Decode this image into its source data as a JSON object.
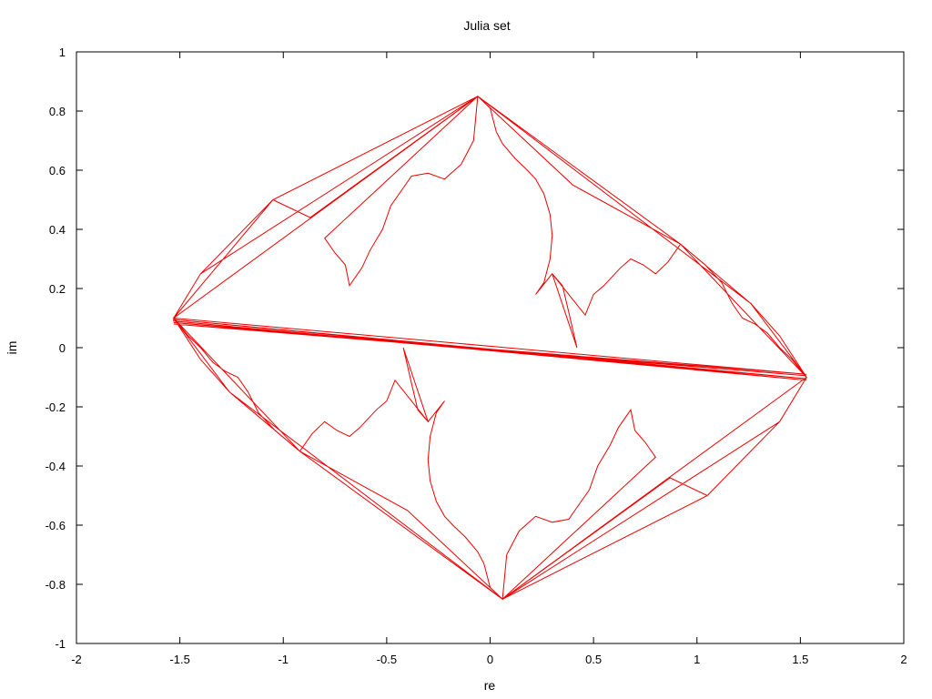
{
  "chart_data": {
    "type": "line",
    "title": "Julia set",
    "xlabel": "re",
    "ylabel": "im",
    "xlim": [
      -2,
      2
    ],
    "ylim": [
      -1,
      1
    ],
    "x_ticks": [
      -2,
      -1.5,
      -1,
      -0.5,
      0,
      0.5,
      1,
      1.5,
      2
    ],
    "x_tick_labels": [
      "-2",
      "-1.5",
      "-1",
      "-0.5",
      "0",
      "0.5",
      "1",
      "1.5",
      "2"
    ],
    "y_ticks": [
      -1,
      -0.8,
      -0.6,
      -0.4,
      -0.2,
      0,
      0.2,
      0.4,
      0.6,
      0.8,
      1
    ],
    "y_tick_labels": [
      "-1",
      "-0.8",
      "-0.6",
      "-0.4",
      "-0.2",
      "0",
      "0.2",
      "0.4",
      "0.6",
      "0.8",
      "1"
    ],
    "grid": false,
    "legend": false,
    "series": [
      {
        "color": "#ee0000",
        "points": [
          [
            -1.53,
            0.1
          ],
          [
            -1.4,
            0.25
          ],
          [
            -1.05,
            0.5
          ],
          [
            -0.06,
            0.85
          ],
          [
            0.92,
            0.35
          ],
          [
            1.26,
            0.15
          ],
          [
            1.53,
            -0.1
          ],
          [
            1.4,
            -0.25
          ],
          [
            1.05,
            -0.5
          ],
          [
            0.06,
            -0.85
          ],
          [
            -0.92,
            -0.35
          ],
          [
            -1.26,
            -0.15
          ],
          [
            -1.53,
            0.1
          ],
          [
            -1.53,
            0.09
          ],
          [
            1.53,
            -0.11
          ],
          [
            -1.53,
            0.095
          ],
          [
            1.53,
            -0.105
          ],
          [
            -1.53,
            0.085
          ],
          [
            1.53,
            -0.095
          ],
          [
            -1.53,
            0.08
          ],
          [
            1.53,
            -0.09
          ],
          [
            -1.53,
            0.1
          ],
          [
            -1.05,
            0.5
          ],
          [
            -0.06,
            0.85
          ],
          [
            -0.87,
            0.44
          ],
          [
            -1.05,
            0.5
          ],
          [
            -1.4,
            0.25
          ],
          [
            -0.06,
            0.85
          ],
          [
            -1.4,
            0.25
          ],
          [
            -1.53,
            0.1
          ],
          [
            -0.06,
            0.85
          ],
          [
            -0.8,
            0.37
          ],
          [
            -0.75,
            0.32
          ],
          [
            -0.7,
            0.28
          ],
          [
            -0.68,
            0.21
          ],
          [
            -0.62,
            0.27
          ],
          [
            -0.58,
            0.33
          ],
          [
            -0.52,
            0.4
          ],
          [
            -0.48,
            0.48
          ],
          [
            -0.42,
            0.54
          ],
          [
            -0.38,
            0.58
          ],
          [
            -0.3,
            0.59
          ],
          [
            -0.22,
            0.57
          ],
          [
            -0.14,
            0.62
          ],
          [
            -0.08,
            0.7
          ],
          [
            -0.06,
            0.85
          ],
          [
            0.0,
            0.81
          ],
          [
            0.03,
            0.73
          ],
          [
            0.06,
            0.69
          ],
          [
            0.12,
            0.64
          ],
          [
            0.18,
            0.6
          ],
          [
            0.22,
            0.57
          ],
          [
            0.26,
            0.52
          ],
          [
            0.29,
            0.45
          ],
          [
            0.3,
            0.38
          ],
          [
            0.29,
            0.3
          ],
          [
            0.26,
            0.22
          ],
          [
            0.22,
            0.18
          ],
          [
            0.3,
            0.25
          ],
          [
            0.35,
            0.21
          ],
          [
            0.38,
            0.12
          ],
          [
            0.42,
            0.0
          ],
          [
            0.3,
            0.25
          ],
          [
            0.46,
            0.11
          ],
          [
            0.5,
            0.18
          ],
          [
            0.55,
            0.21
          ],
          [
            0.63,
            0.27
          ],
          [
            0.68,
            0.3
          ],
          [
            0.74,
            0.28
          ],
          [
            0.8,
            0.25
          ],
          [
            0.86,
            0.29
          ],
          [
            0.92,
            0.35
          ],
          [
            1.04,
            0.28
          ],
          [
            1.12,
            0.22
          ],
          [
            1.17,
            0.15
          ],
          [
            1.22,
            0.1
          ],
          [
            1.28,
            0.08
          ],
          [
            1.34,
            0.05
          ],
          [
            1.4,
            0.0
          ],
          [
            1.46,
            -0.04
          ],
          [
            1.53,
            -0.1
          ],
          [
            0.92,
            0.35
          ],
          [
            1.53,
            -0.1
          ],
          [
            0.92,
            0.35
          ],
          [
            -0.06,
            0.85
          ],
          [
            0.92,
            0.35
          ],
          [
            0.4,
            0.55
          ],
          [
            -0.06,
            0.85
          ],
          [
            1.26,
            0.15
          ],
          [
            1.4,
            0.04
          ],
          [
            1.53,
            -0.1
          ],
          [
            1.4,
            -0.25
          ],
          [
            1.05,
            -0.5
          ],
          [
            0.06,
            -0.85
          ],
          [
            0.87,
            -0.44
          ],
          [
            1.05,
            -0.5
          ],
          [
            1.4,
            -0.25
          ],
          [
            0.06,
            -0.85
          ],
          [
            1.4,
            -0.25
          ],
          [
            1.53,
            -0.1
          ],
          [
            0.06,
            -0.85
          ],
          [
            0.8,
            -0.37
          ],
          [
            0.75,
            -0.32
          ],
          [
            0.7,
            -0.28
          ],
          [
            0.68,
            -0.21
          ],
          [
            0.62,
            -0.27
          ],
          [
            0.58,
            -0.33
          ],
          [
            0.52,
            -0.4
          ],
          [
            0.48,
            -0.48
          ],
          [
            0.42,
            -0.54
          ],
          [
            0.38,
            -0.58
          ],
          [
            0.3,
            -0.59
          ],
          [
            0.22,
            -0.57
          ],
          [
            0.14,
            -0.62
          ],
          [
            0.08,
            -0.7
          ],
          [
            0.06,
            -0.85
          ],
          [
            0.0,
            -0.81
          ],
          [
            -0.03,
            -0.73
          ],
          [
            -0.06,
            -0.69
          ],
          [
            -0.12,
            -0.64
          ],
          [
            -0.18,
            -0.6
          ],
          [
            -0.22,
            -0.57
          ],
          [
            -0.26,
            -0.52
          ],
          [
            -0.29,
            -0.45
          ],
          [
            -0.3,
            -0.38
          ],
          [
            -0.29,
            -0.3
          ],
          [
            -0.26,
            -0.22
          ],
          [
            -0.22,
            -0.18
          ],
          [
            -0.3,
            -0.25
          ],
          [
            -0.35,
            -0.21
          ],
          [
            -0.38,
            -0.12
          ],
          [
            -0.42,
            0.0
          ],
          [
            -0.3,
            -0.25
          ],
          [
            -0.46,
            -0.11
          ],
          [
            -0.5,
            -0.18
          ],
          [
            -0.55,
            -0.21
          ],
          [
            -0.63,
            -0.27
          ],
          [
            -0.68,
            -0.3
          ],
          [
            -0.74,
            -0.28
          ],
          [
            -0.8,
            -0.25
          ],
          [
            -0.86,
            -0.29
          ],
          [
            -0.92,
            -0.35
          ],
          [
            -1.04,
            -0.28
          ],
          [
            -1.12,
            -0.22
          ],
          [
            -1.17,
            -0.15
          ],
          [
            -1.22,
            -0.1
          ],
          [
            -1.28,
            -0.08
          ],
          [
            -1.34,
            -0.05
          ],
          [
            -1.4,
            0.0
          ],
          [
            -1.46,
            0.04
          ],
          [
            -1.53,
            0.1
          ],
          [
            -0.92,
            -0.35
          ],
          [
            -1.53,
            0.1
          ],
          [
            -0.92,
            -0.35
          ],
          [
            0.06,
            -0.85
          ],
          [
            -0.92,
            -0.35
          ],
          [
            -0.4,
            -0.55
          ],
          [
            0.06,
            -0.85
          ],
          [
            -1.26,
            -0.15
          ],
          [
            -1.4,
            -0.04
          ],
          [
            -1.53,
            0.1
          ]
        ]
      }
    ]
  }
}
